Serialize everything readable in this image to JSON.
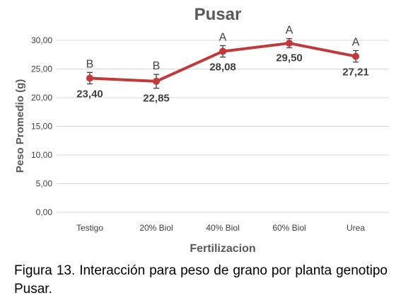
{
  "chart_data": {
    "type": "line",
    "title": "Pusar",
    "xlabel": "Fertilizacion",
    "ylabel": "Peso Promedio (g)",
    "ylim": [
      0,
      30
    ],
    "yticks": [
      "0,00",
      "5,00",
      "10,00",
      "15,00",
      "20,00",
      "25,00",
      "30,00"
    ],
    "categories": [
      "Testigo",
      "20% Biol",
      "40% Biol",
      "60% Biol",
      "Urea"
    ],
    "series": [
      {
        "values": [
          23.4,
          22.85,
          28.08,
          29.5,
          27.21
        ],
        "error": [
          1.0,
          1.2,
          1.0,
          0.8,
          1.0
        ],
        "color": "#c0393b"
      }
    ],
    "data_labels": [
      "23,40",
      "22,85",
      "28,08",
      "29,50",
      "27,21"
    ],
    "group_letters": [
      "B",
      "B",
      "A",
      "A",
      "A"
    ],
    "grid": "horizontal",
    "legend": "none"
  },
  "caption": "Figura 13. Interacción para peso de grano por planta genotipo Pusar."
}
